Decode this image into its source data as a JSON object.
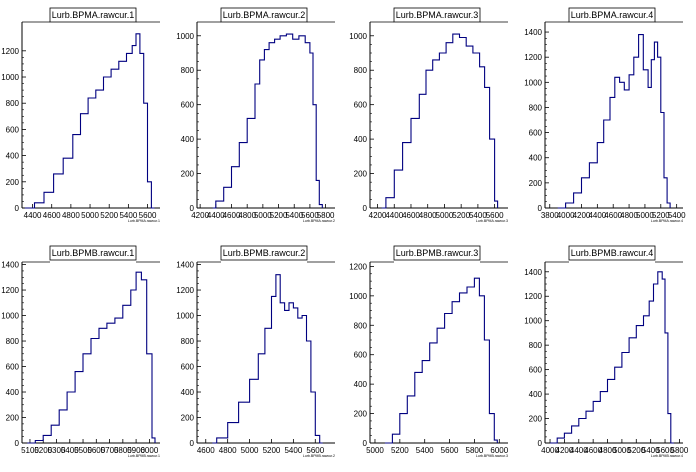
{
  "canvas": {
    "background": "#ffffff",
    "line_color": "#000080",
    "axis_color": "#000000"
  },
  "chart_data": [
    {
      "type": "histogram",
      "title": "Lurb.BPMA.rawcur.1",
      "xlabel": "Lurb.BPMA.rawcur.1",
      "ylabel": "",
      "xlim": [
        4290,
        5730
      ],
      "ylim": [
        0,
        1420
      ],
      "xticks": [
        4400,
        4600,
        4800,
        5000,
        5200,
        5400,
        5600
      ],
      "yticks": [
        0,
        200,
        400,
        600,
        800,
        1000,
        1200
      ],
      "x": [
        4320,
        4420,
        4520,
        4620,
        4720,
        4820,
        4900,
        4980,
        5060,
        5140,
        5220,
        5300,
        5380,
        5440,
        5480,
        5520,
        5560,
        5600,
        5640
      ],
      "values": [
        0,
        40,
        120,
        260,
        380,
        560,
        720,
        840,
        900,
        1000,
        1060,
        1120,
        1180,
        1240,
        1330,
        1180,
        800,
        200,
        0
      ]
    },
    {
      "type": "histogram",
      "title": "Lurb.BPMA.rawcur.2",
      "xlabel": "Lurb.BPMA.rawcur.2",
      "ylabel": "",
      "xlim": [
        4160,
        5920
      ],
      "ylim": [
        0,
        1080
      ],
      "xticks": [
        4200,
        4400,
        4600,
        4800,
        5000,
        5200,
        5400,
        5600,
        5800
      ],
      "yticks": [
        0,
        200,
        400,
        600,
        800,
        1000
      ],
      "x": [
        4360,
        4400,
        4500,
        4600,
        4700,
        4800,
        4900,
        4960,
        5020,
        5080,
        5150,
        5220,
        5300,
        5380,
        5460,
        5540,
        5600,
        5640,
        5680,
        5720
      ],
      "values": [
        0,
        40,
        120,
        240,
        380,
        520,
        720,
        860,
        920,
        960,
        980,
        1000,
        1010,
        980,
        1000,
        960,
        900,
        600,
        160,
        20
      ]
    },
    {
      "type": "histogram",
      "title": "Lurb.BPMA.rawcur.3",
      "xlabel": "Lurb.BPMA.rawcur.3",
      "ylabel": "",
      "xlim": [
        4110,
        5760
      ],
      "ylim": [
        0,
        1080
      ],
      "xticks": [
        4200,
        4400,
        4600,
        4800,
        5000,
        5200,
        5400,
        5600
      ],
      "yticks": [
        0,
        200,
        400,
        600,
        800,
        1000
      ],
      "x": [
        4250,
        4300,
        4400,
        4500,
        4600,
        4700,
        4780,
        4860,
        4940,
        5020,
        5100,
        5180,
        5260,
        5340,
        5420,
        5480,
        5540,
        5600
      ],
      "values": [
        0,
        60,
        220,
        380,
        520,
        660,
        800,
        860,
        900,
        960,
        1010,
        990,
        940,
        900,
        820,
        700,
        400,
        40
      ]
    },
    {
      "type": "histogram",
      "title": "Lurb.BPMA.rawcur.4",
      "xlabel": "Lurb.BPMA.rawcur.4",
      "ylabel": "",
      "xlim": [
        3740,
        5480
      ],
      "ylim": [
        0,
        1480
      ],
      "xticks": [
        3800,
        4000,
        4200,
        4400,
        4600,
        4800,
        5000,
        5200,
        5400
      ],
      "yticks": [
        0,
        200,
        400,
        600,
        800,
        1000,
        1200,
        1400
      ],
      "x": [
        3900,
        4000,
        4100,
        4200,
        4300,
        4400,
        4480,
        4560,
        4620,
        4680,
        4740,
        4800,
        4860,
        4920,
        4980,
        5040,
        5080,
        5120,
        5160,
        5200,
        5240,
        5280
      ],
      "values": [
        0,
        40,
        120,
        240,
        360,
        520,
        700,
        880,
        1040,
        1000,
        940,
        1060,
        1200,
        1380,
        1100,
        960,
        1180,
        1320,
        1200,
        760,
        240,
        40
      ]
    },
    {
      "type": "histogram",
      "title": "Lurb.BPMB.rawcur.1",
      "xlabel": "Lurb.BPMB.rawcur.1",
      "ylabel": "",
      "xlim": [
        5040,
        6080
      ],
      "ylim": [
        0,
        1420
      ],
      "xticks": [
        5100,
        5200,
        5300,
        5400,
        5500,
        5600,
        5700,
        5800,
        5900,
        6000
      ],
      "yticks": [
        0,
        200,
        400,
        600,
        800,
        1000,
        1200,
        1400
      ],
      "x": [
        5080,
        5140,
        5200,
        5260,
        5320,
        5380,
        5440,
        5500,
        5560,
        5620,
        5680,
        5740,
        5800,
        5860,
        5900,
        5940,
        5980,
        6020
      ],
      "values": [
        0,
        20,
        60,
        140,
        260,
        400,
        560,
        700,
        820,
        900,
        940,
        980,
        1080,
        1200,
        1340,
        1280,
        700,
        40
      ]
    },
    {
      "type": "histogram",
      "title": "Lurb.BPMB.rawcur.2",
      "xlabel": "Lurb.BPMB.rawcur.2",
      "ylabel": "",
      "xlim": [
        4520,
        5780
      ],
      "ylim": [
        0,
        1420
      ],
      "xticks": [
        4600,
        4800,
        5000,
        5200,
        5400,
        5600
      ],
      "yticks": [
        0,
        200,
        400,
        600,
        800,
        1000,
        1200,
        1400
      ],
      "x": [
        4660,
        4700,
        4800,
        4900,
        5000,
        5080,
        5140,
        5200,
        5240,
        5280,
        5320,
        5360,
        5400,
        5440,
        5480,
        5520,
        5560,
        5600,
        5640
      ],
      "values": [
        0,
        40,
        160,
        320,
        500,
        700,
        900,
        1150,
        1320,
        1100,
        1040,
        1100,
        1060,
        980,
        1000,
        800,
        400,
        60,
        0
      ]
    },
    {
      "type": "histogram",
      "title": "Lurb.BPMB.rawcur.3",
      "xlabel": "Lurb.BPMB.rawcur.3",
      "ylabel": "",
      "xlim": [
        4960,
        6070
      ],
      "ylim": [
        0,
        1230
      ],
      "xticks": [
        5000,
        5200,
        5400,
        5600,
        5800,
        6000
      ],
      "yticks": [
        0,
        200,
        400,
        600,
        800,
        1000,
        1200
      ],
      "x": [
        5080,
        5140,
        5200,
        5260,
        5320,
        5380,
        5440,
        5500,
        5560,
        5620,
        5680,
        5740,
        5800,
        5840,
        5880,
        5920,
        5960
      ],
      "values": [
        0,
        60,
        200,
        320,
        480,
        560,
        680,
        780,
        880,
        960,
        1020,
        1060,
        1120,
        1000,
        700,
        200,
        20
      ]
    },
    {
      "type": "histogram",
      "title": "Lurb.BPMB.rawcur.4",
      "xlabel": "Lurb.BPMB.rawcur.4",
      "ylabel": "",
      "xlim": [
        3930,
        5850
      ],
      "ylim": [
        0,
        1480
      ],
      "xticks": [
        4000,
        4200,
        4400,
        4600,
        4800,
        5000,
        5200,
        5400,
        5600,
        5800
      ],
      "yticks": [
        0,
        200,
        400,
        600,
        800,
        1000,
        1200,
        1400
      ],
      "x": [
        4000,
        4100,
        4200,
        4300,
        4400,
        4500,
        4600,
        4700,
        4800,
        4900,
        5000,
        5100,
        5200,
        5300,
        5380,
        5440,
        5500,
        5560,
        5600,
        5640,
        5680
      ],
      "values": [
        0,
        40,
        80,
        140,
        200,
        260,
        340,
        420,
        520,
        620,
        740,
        860,
        960,
        1040,
        1160,
        1300,
        1400,
        1340,
        900,
        240,
        0
      ]
    }
  ]
}
